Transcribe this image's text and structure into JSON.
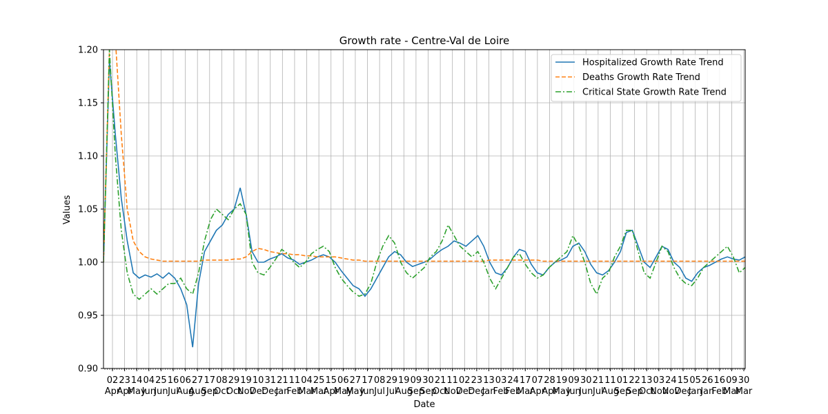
{
  "chart_data": {
    "type": "line",
    "title": "Growth rate - Centre-Val de Loire",
    "xlabel": "Date",
    "ylabel": "Values",
    "ylim": [
      0.9,
      1.2
    ],
    "yticks": [
      "0.90",
      "0.95",
      "1.00",
      "1.05",
      "1.10",
      "1.15",
      "1.20"
    ],
    "grid": true,
    "legend": "top-right",
    "x_tick_days": [
      "02",
      "23",
      "14",
      "04",
      "25",
      "16",
      "06",
      "27",
      "17",
      "08",
      "29",
      "19",
      "10",
      "31",
      "21",
      "11",
      "04",
      "25",
      "15",
      "06",
      "27",
      "17",
      "08",
      "29",
      "19",
      "09",
      "30",
      "21",
      "11",
      "02",
      "23",
      "13",
      "03",
      "24",
      "17",
      "07",
      "28",
      "19",
      "09",
      "30",
      "21",
      "11",
      "01",
      "22",
      "13",
      "03",
      "24",
      "15",
      "05",
      "26",
      "16",
      "09",
      "30"
    ],
    "x_tick_months": [
      "Apr",
      "Apr",
      "May",
      "Jun",
      "Jun",
      "Jul",
      "Aug",
      "Aug",
      "Sep",
      "Oct",
      "Oct",
      "Nov",
      "Dec",
      "Dec",
      "Jan",
      "Feb",
      "Mar",
      "Mar",
      "Apr",
      "May",
      "May",
      "Jun",
      "Jul",
      "Jul",
      "Aug",
      "Sep",
      "Sep",
      "Oct",
      "Nov",
      "Dec",
      "Dec",
      "Jan",
      "Feb",
      "Feb",
      "Mar",
      "Apr",
      "Apr",
      "May",
      "Jun",
      "Jun",
      "Jul",
      "Aug",
      "Sep",
      "Sep",
      "Oct",
      "Nov",
      "Nov",
      "Dec",
      "Jan",
      "Jan",
      "Feb",
      "Mar",
      "Mar"
    ],
    "x": [
      0,
      10,
      20,
      30,
      40,
      50,
      60,
      70,
      80,
      90,
      100,
      110,
      120,
      130,
      140,
      150,
      160,
      170,
      180,
      190,
      200,
      210,
      220,
      230,
      240,
      250,
      260,
      270,
      280,
      290,
      300,
      310,
      320,
      330,
      340,
      350,
      360,
      370,
      380,
      390,
      400,
      410,
      420,
      430,
      440,
      450,
      460,
      470,
      480,
      490,
      500,
      510,
      520,
      530,
      540,
      550,
      560,
      570,
      580,
      590,
      600,
      610,
      620,
      630,
      640,
      650,
      660,
      670,
      680,
      690,
      700,
      710,
      720,
      730,
      740,
      750,
      760,
      770,
      780,
      790,
      800,
      810,
      820,
      830,
      840,
      850,
      860,
      870,
      880,
      890,
      900,
      910,
      920,
      930,
      940,
      950,
      960,
      970,
      980,
      990,
      1000,
      1010,
      1020,
      1030,
      1040,
      1050,
      1060,
      1070,
      1080
    ],
    "series": [
      {
        "name": "Hospitalized Growth Rate Trend",
        "color": "#1f77b4",
        "style": "solid",
        "values": [
          1.0,
          1.19,
          1.12,
          1.06,
          1.02,
          0.99,
          0.985,
          0.988,
          0.986,
          0.989,
          0.985,
          0.99,
          0.985,
          0.975,
          0.96,
          0.92,
          0.98,
          1.01,
          1.02,
          1.03,
          1.035,
          1.045,
          1.05,
          1.07,
          1.045,
          1.01,
          1.0,
          1.0,
          1.003,
          1.005,
          1.008,
          1.004,
          1.002,
          0.998,
          1.0,
          1.002,
          1.005,
          1.007,
          1.005,
          1.0,
          0.992,
          0.985,
          0.978,
          0.975,
          0.968,
          0.975,
          0.985,
          0.995,
          1.005,
          1.01,
          1.007,
          1.0,
          0.996,
          0.998,
          1.0,
          1.003,
          1.008,
          1.012,
          1.015,
          1.02,
          1.018,
          1.015,
          1.02,
          1.025,
          1.015,
          1.0,
          0.99,
          0.988,
          0.995,
          1.005,
          1.012,
          1.01,
          0.998,
          0.99,
          0.988,
          0.995,
          1.0,
          1.002,
          1.005,
          1.015,
          1.018,
          1.01,
          0.998,
          0.99,
          0.988,
          0.992,
          1.0,
          1.01,
          1.028,
          1.03,
          1.015,
          1.0,
          0.995,
          1.005,
          1.015,
          1.012,
          1.0,
          0.995,
          0.985,
          0.982,
          0.99,
          0.995,
          0.997,
          1.0,
          1.003,
          1.005,
          1.003,
          1.002,
          1.005
        ]
      },
      {
        "name": "Deaths Growth Rate Trend",
        "color": "#ff7f0e",
        "style": "dashed",
        "values": [
          1.0,
          1.2,
          1.21,
          1.12,
          1.05,
          1.02,
          1.01,
          1.005,
          1.003,
          1.002,
          1.001,
          1.001,
          1.001,
          1.001,
          1.001,
          1.001,
          1.001,
          1.002,
          1.002,
          1.002,
          1.002,
          1.002,
          1.003,
          1.003,
          1.005,
          1.01,
          1.013,
          1.012,
          1.01,
          1.009,
          1.008,
          1.008,
          1.007,
          1.007,
          1.006,
          1.006,
          1.005,
          1.005,
          1.005,
          1.005,
          1.004,
          1.003,
          1.002,
          1.002,
          1.001,
          1.001,
          1.001,
          1.001,
          1.001,
          1.001,
          1.001,
          1.001,
          1.001,
          1.001,
          1.001,
          1.001,
          1.001,
          1.001,
          1.001,
          1.001,
          1.001,
          1.001,
          1.001,
          1.001,
          1.001,
          1.002,
          1.002,
          1.002,
          1.002,
          1.002,
          1.002,
          1.002,
          1.002,
          1.002,
          1.001,
          1.001,
          1.001,
          1.001,
          1.001,
          1.001,
          1.001,
          1.001,
          1.001,
          1.001,
          1.001,
          1.001,
          1.001,
          1.001,
          1.001,
          1.001,
          1.001,
          1.001,
          1.001,
          1.001,
          1.001,
          1.001,
          1.001,
          1.001,
          1.001,
          1.001,
          1.001,
          1.001,
          1.001,
          1.001,
          1.001,
          1.001,
          1.001,
          1.001,
          1.001
        ]
      },
      {
        "name": "Critical State Growth Rate Trend",
        "color": "#2ca02c",
        "style": "dashdot",
        "values": [
          1.0,
          1.2,
          1.1,
          1.03,
          0.99,
          0.97,
          0.965,
          0.97,
          0.975,
          0.97,
          0.975,
          0.98,
          0.98,
          0.985,
          0.975,
          0.97,
          0.99,
          1.02,
          1.04,
          1.05,
          1.045,
          1.04,
          1.05,
          1.055,
          1.045,
          1.0,
          0.99,
          0.988,
          0.995,
          1.003,
          1.012,
          1.008,
          1.0,
          0.995,
          1.0,
          1.008,
          1.012,
          1.015,
          1.01,
          0.995,
          0.985,
          0.978,
          0.972,
          0.968,
          0.97,
          0.98,
          1.0,
          1.015,
          1.025,
          1.018,
          1.0,
          0.99,
          0.985,
          0.99,
          0.995,
          1.005,
          1.01,
          1.02,
          1.035,
          1.025,
          1.015,
          1.01,
          1.005,
          1.01,
          1.0,
          0.985,
          0.975,
          0.985,
          0.995,
          1.005,
          1.008,
          0.998,
          0.99,
          0.985,
          0.988,
          0.995,
          1.0,
          1.005,
          1.01,
          1.025,
          1.015,
          1.0,
          0.98,
          0.97,
          0.985,
          0.99,
          1.005,
          1.015,
          1.03,
          1.03,
          1.01,
          0.99,
          0.985,
          1.0,
          1.015,
          1.01,
          0.995,
          0.985,
          0.98,
          0.978,
          0.985,
          0.995,
          1.0,
          1.005,
          1.01,
          1.015,
          1.005,
          0.99,
          0.995
        ]
      }
    ]
  }
}
